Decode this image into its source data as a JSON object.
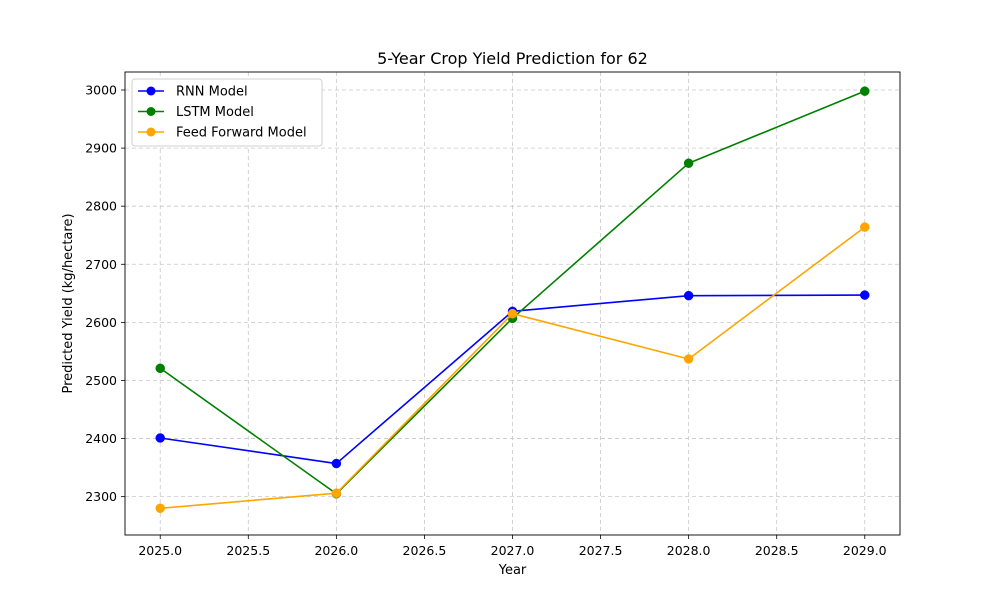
{
  "chart_data": {
    "type": "line",
    "title": "5-Year Crop Yield Prediction for 62",
    "xlabel": "Year",
    "ylabel": "Predicted Yield (kg/hectare)",
    "x": [
      2025,
      2026,
      2027,
      2028,
      2029
    ],
    "xlim": [
      2024.8,
      2029.2
    ],
    "ylim": [
      2234,
      3031
    ],
    "xticks": [
      2025.0,
      2025.5,
      2026.0,
      2026.5,
      2027.0,
      2027.5,
      2028.0,
      2028.5,
      2029.0
    ],
    "xtick_labels": [
      "2025.0",
      "2025.5",
      "2026.0",
      "2026.5",
      "2027.0",
      "2027.5",
      "2028.0",
      "2028.5",
      "2029.0"
    ],
    "yticks": [
      2300,
      2400,
      2500,
      2600,
      2700,
      2800,
      2900,
      3000
    ],
    "ytick_labels": [
      "2300",
      "2400",
      "2500",
      "2600",
      "2700",
      "2800",
      "2900",
      "3000"
    ],
    "grid": true,
    "legend_position": "top-left",
    "series": [
      {
        "name": "RNN Model",
        "color": "#0000ff",
        "marker": "circle",
        "values": [
          2401,
          2357,
          2619,
          2646,
          2647
        ]
      },
      {
        "name": "LSTM Model",
        "color": "#008000",
        "marker": "circle",
        "values": [
          2521,
          2305,
          2607,
          2874,
          2998
        ]
      },
      {
        "name": "Feed Forward Model",
        "color": "#ffa500",
        "marker": "circle",
        "values": [
          2280,
          2306,
          2615,
          2537,
          2764
        ]
      }
    ]
  }
}
